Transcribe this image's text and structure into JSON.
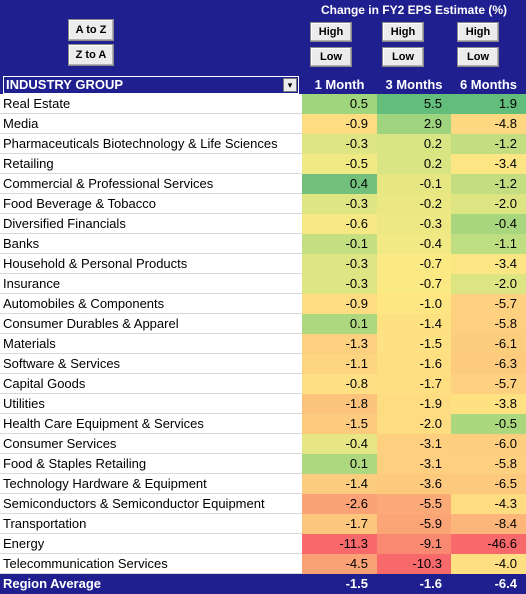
{
  "sort_buttons": {
    "a_to_z": "A to Z",
    "z_to_a": "Z to A"
  },
  "metrics_title": "Change in FY2 EPS Estimate (%)",
  "high_label": "High",
  "low_label": "Low",
  "columns": {
    "industry_group": "INDUSTRY GROUP",
    "m1": "1 Month",
    "m3": "3 Months",
    "m6": "6 Months"
  },
  "rows": [
    {
      "name": "Real Estate",
      "m1": "0.5",
      "m3": "5.5",
      "m6": "1.9",
      "c1": "#9ed57d",
      "c2": "#63be7b",
      "c3": "#63be7b"
    },
    {
      "name": "Media",
      "m1": "-0.9",
      "m3": "2.9",
      "m6": "-4.8",
      "c1": "#fddc82",
      "c2": "#9fd47f",
      "c3": "#fdd880"
    },
    {
      "name": "Pharmaceuticals Biotechnology & Life Sciences",
      "m1": "-0.3",
      "m3": "0.2",
      "m6": "-1.2",
      "c1": "#dde683",
      "c2": "#d7e582",
      "c3": "#c2de81"
    },
    {
      "name": "Retailing",
      "m1": "-0.5",
      "m3": "0.2",
      "m6": "-3.4",
      "c1": "#f0e984",
      "c2": "#d9e583",
      "c3": "#fbe683"
    },
    {
      "name": "Commercial & Professional Services",
      "m1": "0.4",
      "m3": "-0.1",
      "m6": "-1.2",
      "c1": "#71c17c",
      "c2": "#e6e783",
      "c3": "#c2de81"
    },
    {
      "name": "Food Beverage & Tobacco",
      "m1": "-0.3",
      "m3": "-0.2",
      "m6": "-2.0",
      "c1": "#dde683",
      "c2": "#ebe884",
      "c3": "#dde583"
    },
    {
      "name": "Diversified Financials",
      "m1": "-0.6",
      "m3": "-0.3",
      "m6": "-0.4",
      "c1": "#f6e984",
      "c2": "#eee884",
      "c3": "#a8d67f"
    },
    {
      "name": "Banks",
      "m1": "-0.1",
      "m3": "-0.4",
      "m6": "-1.1",
      "c1": "#c4df82",
      "c2": "#f1e984",
      "c3": "#bfdd81"
    },
    {
      "name": "Household & Personal Products",
      "m1": "-0.3",
      "m3": "-0.7",
      "m6": "-3.4",
      "c1": "#dde683",
      "c2": "#fbea84",
      "c3": "#fbe683"
    },
    {
      "name": "Insurance",
      "m1": "-0.3",
      "m3": "-0.7",
      "m6": "-2.0",
      "c1": "#dde683",
      "c2": "#fbea84",
      "c3": "#dde583"
    },
    {
      "name": "Automobiles & Components",
      "m1": "-0.9",
      "m3": "-1.0",
      "m6": "-5.7",
      "c1": "#fddc82",
      "c2": "#fee683",
      "c3": "#fdd17f"
    },
    {
      "name": "Consumer Durables & Apparel",
      "m1": "0.1",
      "m3": "-1.4",
      "m6": "-5.8",
      "c1": "#aed880",
      "c2": "#fee282",
      "c3": "#fdd07f"
    },
    {
      "name": "Materials",
      "m1": "-1.3",
      "m3": "-1.5",
      "m6": "-6.1",
      "c1": "#fdd07f",
      "c2": "#fee182",
      "c3": "#fdcd7e"
    },
    {
      "name": "Software & Services",
      "m1": "-1.1",
      "m3": "-1.6",
      "m6": "-6.3",
      "c1": "#fdd580",
      "c2": "#fee082",
      "c3": "#fdcb7e"
    },
    {
      "name": "Capital Goods",
      "m1": "-0.8",
      "m3": "-1.7",
      "m6": "-5.7",
      "c1": "#fde083",
      "c2": "#fedf82",
      "c3": "#fdd17f"
    },
    {
      "name": "Utilities",
      "m1": "-1.8",
      "m3": "-1.9",
      "m6": "-3.8",
      "c1": "#fcc37c",
      "c2": "#fedd82",
      "c3": "#fee282"
    },
    {
      "name": "Health Care Equipment & Services",
      "m1": "-1.5",
      "m3": "-2.0",
      "m6": "-0.5",
      "c1": "#fccb7e",
      "c2": "#fedc82",
      "c3": "#abd77f"
    },
    {
      "name": "Consumer Services",
      "m1": "-0.4",
      "m3": "-3.1",
      "m6": "-6.0",
      "c1": "#e6e784",
      "c2": "#fdcf7f",
      "c3": "#fdce7e"
    },
    {
      "name": "Food & Staples Retailing",
      "m1": "0.1",
      "m3": "-3.1",
      "m6": "-5.8",
      "c1": "#aed880",
      "c2": "#fdcf7f",
      "c3": "#fdd07f"
    },
    {
      "name": "Technology Hardware & Equipment",
      "m1": "-1.4",
      "m3": "-3.6",
      "m6": "-6.5",
      "c1": "#fccd7e",
      "c2": "#fcc97d",
      "c3": "#fdc97d"
    },
    {
      "name": "Semiconductors & Semiconductor Equipment",
      "m1": "-2.6",
      "m3": "-5.5",
      "m6": "-4.3",
      "c1": "#fba276",
      "c2": "#fbaa77",
      "c3": "#fedd82"
    },
    {
      "name": "Transportation",
      "m1": "-1.7",
      "m3": "-5.9",
      "m6": "-8.4",
      "c1": "#fcc67d",
      "c2": "#fba476",
      "c3": "#fcb67a"
    },
    {
      "name": "Energy",
      "m1": "-11.3",
      "m3": "-9.1",
      "m6": "-46.6",
      "c1": "#f8696b",
      "c2": "#f98a71",
      "c3": "#f8696b"
    },
    {
      "name": "Telecommunication Services",
      "m1": "-4.5",
      "m3": "-10.3",
      "m6": "-4.0",
      "c1": "#faa175",
      "c2": "#f8696b",
      "c3": "#fee082"
    }
  ],
  "region_average": {
    "label": "Region Average",
    "m1": "-1.5",
    "m3": "-1.6",
    "m6": "-6.4"
  }
}
